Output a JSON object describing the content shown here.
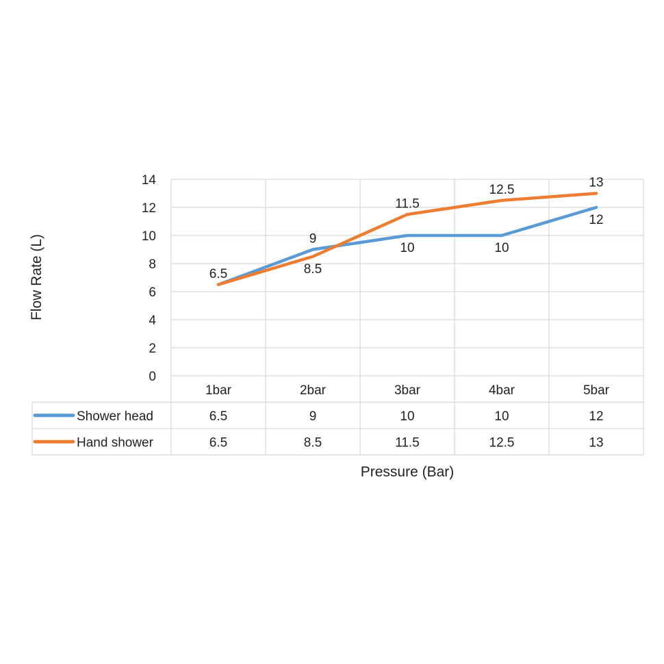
{
  "chart_data": {
    "type": "line",
    "title": "",
    "xlabel": "Pressure (Bar)",
    "ylabel": "Flow Rate (L)",
    "categories": [
      "1bar",
      "2bar",
      "3bar",
      "4bar",
      "5bar"
    ],
    "ylim": [
      0,
      14
    ],
    "yticks": [
      0,
      2,
      4,
      6,
      8,
      10,
      12,
      14
    ],
    "grid": true,
    "legend": "data-table",
    "data_table": true,
    "series": [
      {
        "name": "Shower head",
        "values": [
          6.5,
          9,
          10,
          10,
          12
        ],
        "color": "#5B9BD5"
      },
      {
        "name": "Hand shower",
        "values": [
          6.5,
          8.5,
          11.5,
          12.5,
          13
        ],
        "color": "#ED7D31"
      }
    ]
  }
}
